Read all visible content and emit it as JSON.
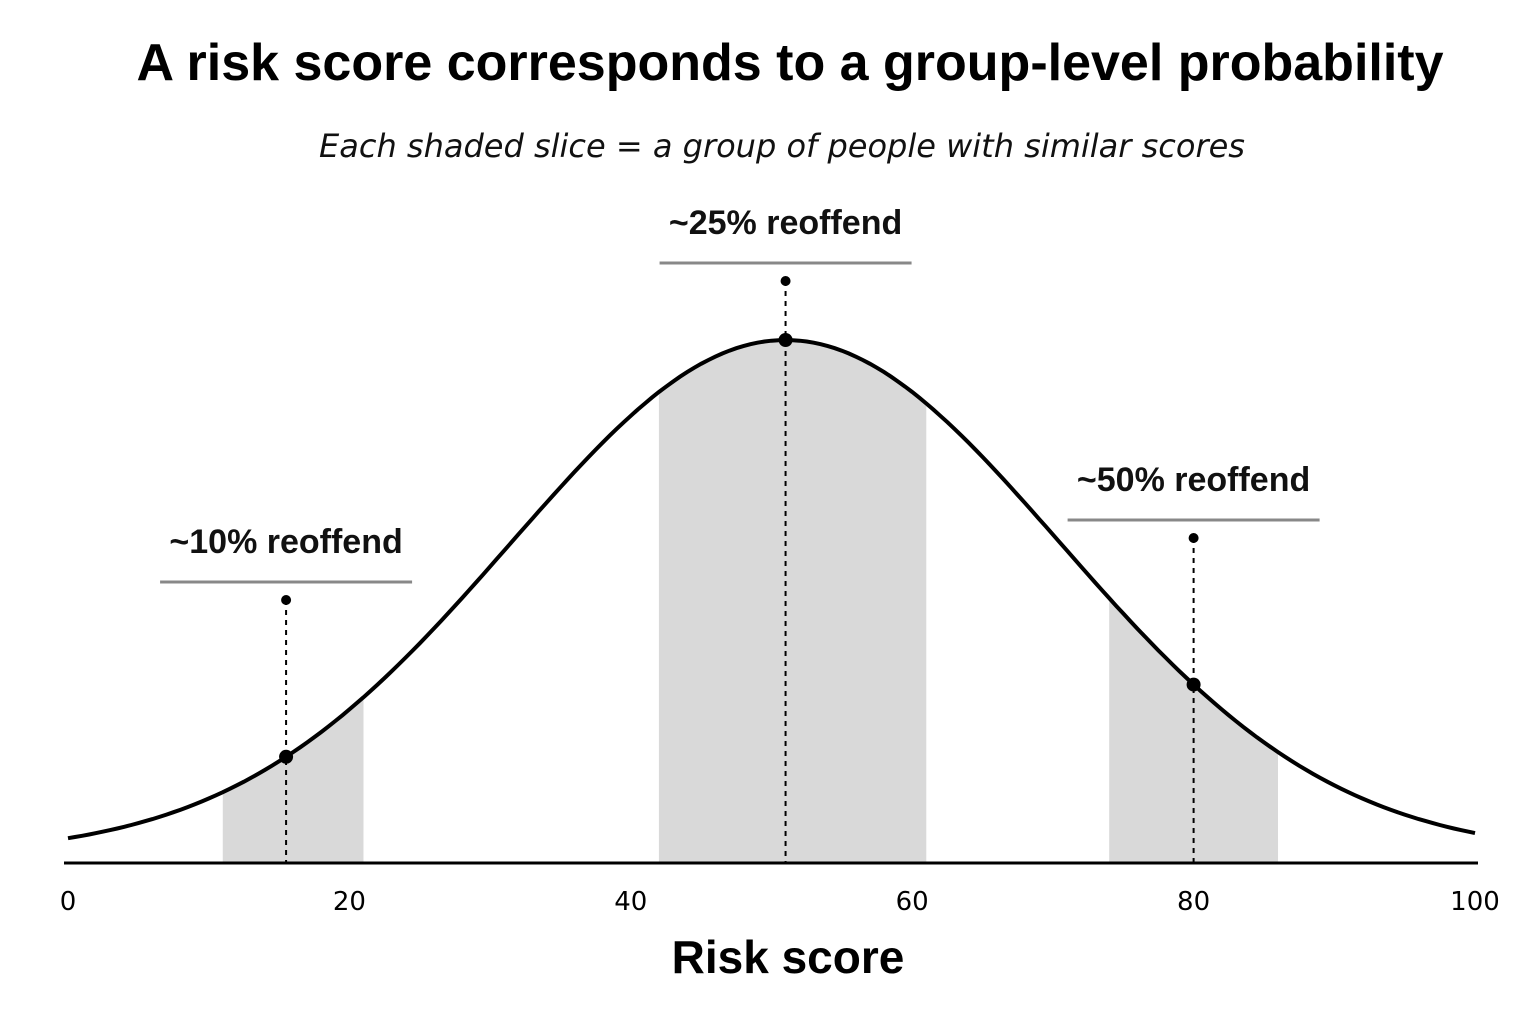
{
  "chart_data": {
    "type": "area",
    "title": "A risk score corresponds to a group-level probability",
    "subtitle": "Each shaded slice = a group of people with similar scores",
    "xlabel": "Risk score",
    "ylabel": "",
    "xlim": [
      0,
      100
    ],
    "x_ticks": [
      "0",
      "20",
      "40",
      "60",
      "80",
      "100"
    ],
    "grid": false,
    "curve": {
      "distribution": "normal",
      "mean": 51,
      "sd": 19.5
    },
    "colors": {
      "curve": "#000000",
      "slice": "#d9d9d9",
      "underline": "#888888"
    },
    "slices": [
      {
        "range": [
          11,
          21
        ],
        "marker_x": 15.5,
        "label": "~10% reoffend"
      },
      {
        "range": [
          42,
          61
        ],
        "marker_x": 51,
        "label": "~25% reoffend"
      },
      {
        "range": [
          74,
          86
        ],
        "marker_x": 80,
        "label": "~50% reoffend"
      }
    ]
  }
}
